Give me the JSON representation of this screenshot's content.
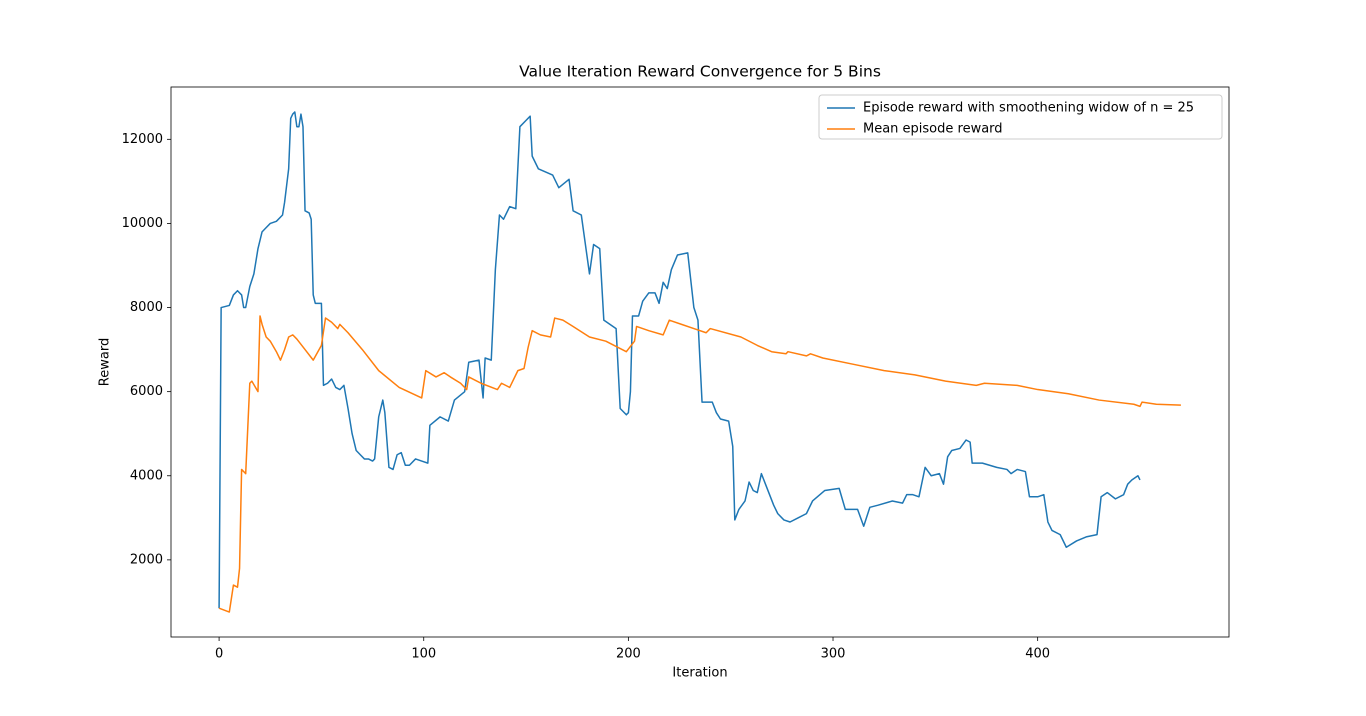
{
  "chart_data": {
    "type": "line",
    "title": "Value Iteration Reward Convergence for 5 Bins",
    "x_label": "Iteration",
    "y_label": "Reward",
    "xlim": [
      -23.5,
      493.5
    ],
    "ylim": [
      166,
      13244
    ],
    "xticks": [
      0,
      100,
      200,
      300,
      400
    ],
    "yticks": [
      2000,
      4000,
      6000,
      8000,
      10000,
      12000
    ],
    "legend": "upper right",
    "series": [
      {
        "name": "Episode reward with smoothening widow of n = 25",
        "color": "#1f77b4",
        "x": [
          0,
          1,
          5,
          7,
          9,
          11,
          12,
          13,
          15,
          17,
          19,
          21,
          23,
          25,
          28,
          31,
          32,
          33,
          34,
          35,
          36,
          37,
          38,
          39,
          40,
          41,
          42,
          44,
          45,
          46,
          47,
          50,
          51,
          53,
          55,
          57,
          59,
          61,
          63,
          65,
          67,
          69,
          71,
          73,
          75,
          76,
          78,
          80,
          81,
          83,
          85,
          87,
          89,
          91,
          93,
          96,
          99,
          102,
          103,
          108,
          112,
          115,
          120,
          122,
          127,
          129,
          130,
          133,
          135,
          137,
          139,
          142,
          145,
          147,
          150,
          152,
          153,
          156,
          163,
          166,
          171,
          173,
          177,
          181,
          183,
          186,
          188,
          191,
          194,
          196,
          199,
          200,
          201,
          202,
          205,
          207,
          210,
          213,
          215,
          217,
          219,
          221,
          224,
          229,
          232,
          234,
          236,
          241,
          243,
          245,
          249,
          251,
          252,
          254,
          257,
          259,
          261,
          263,
          265,
          267,
          269,
          271,
          273,
          276,
          279,
          283,
          287,
          290,
          296,
          303,
          306,
          312,
          315,
          318,
          322,
          329,
          334,
          336,
          339,
          342,
          345,
          348,
          352,
          354,
          356,
          358,
          362,
          365,
          367,
          368,
          373,
          380,
          385,
          387,
          390,
          394,
          396,
          400,
          403,
          405,
          407,
          411,
          414,
          419,
          424,
          429,
          431,
          434,
          438,
          442,
          444,
          446,
          449,
          450
        ],
        "values": [
          850,
          8000,
          8050,
          8300,
          8400,
          8300,
          8000,
          8000,
          8500,
          8800,
          9400,
          9800,
          9900,
          10000,
          10050,
          10200,
          10500,
          10900,
          11300,
          12500,
          12600,
          12650,
          12300,
          12300,
          12600,
          12300,
          10300,
          10250,
          10100,
          8300,
          8100,
          8100,
          6150,
          6200,
          6300,
          6100,
          6050,
          6150,
          5600,
          5000,
          4600,
          4500,
          4400,
          4400,
          4350,
          4400,
          5400,
          5800,
          5500,
          4200,
          4150,
          4500,
          4550,
          4250,
          4250,
          4400,
          4350,
          4300,
          5200,
          5400,
          5300,
          5800,
          6000,
          6700,
          6750,
          5850,
          6800,
          6750,
          8900,
          10200,
          10100,
          10400,
          10350,
          12300,
          12450,
          12550,
          11600,
          11300,
          11150,
          10850,
          11050,
          10300,
          10200,
          8800,
          9500,
          9400,
          7700,
          7600,
          7500,
          5600,
          5450,
          5500,
          6000,
          7800,
          7800,
          8150,
          8350,
          8350,
          8100,
          8600,
          8450,
          8900,
          9250,
          9300,
          8000,
          7700,
          5750,
          5750,
          5500,
          5350,
          5300,
          4700,
          2950,
          3200,
          3400,
          3850,
          3650,
          3600,
          4050,
          3800,
          3550,
          3300,
          3100,
          2950,
          2900,
          3000,
          3100,
          3400,
          3650,
          3700,
          3200,
          3200,
          2800,
          3250,
          3300,
          3400,
          3350,
          3550,
          3550,
          3500,
          4200,
          4000,
          4050,
          3800,
          4450,
          4600,
          4650,
          4850,
          4800,
          4300,
          4300,
          4200,
          4150,
          4050,
          4150,
          4100,
          3500,
          3500,
          3550,
          2900,
          2700,
          2600,
          2300,
          2450,
          2550,
          2600,
          3500,
          3600,
          3450,
          3550,
          3800,
          3900,
          4000,
          3900
        ]
      },
      {
        "name": "Mean episode reward",
        "color": "#ff7f0e",
        "x": [
          0,
          5,
          7,
          9,
          10,
          11,
          13,
          15,
          16,
          19,
          20,
          21,
          23,
          25,
          28,
          30,
          32,
          34,
          36,
          38,
          42,
          46,
          50,
          52,
          55,
          58,
          59,
          63,
          70,
          78,
          88,
          99,
          101,
          106,
          110,
          113,
          118,
          121,
          122,
          128,
          136,
          138,
          142,
          146,
          149,
          151,
          153,
          157,
          162,
          164,
          168,
          173,
          181,
          189,
          199,
          203,
          204,
          210,
          217,
          220,
          226,
          232,
          238,
          240,
          255,
          263,
          270,
          277,
          278,
          287,
          289,
          295,
          310,
          325,
          340,
          355,
          370,
          374,
          390,
          400,
          415,
          430,
          447,
          450,
          451,
          458,
          470
        ],
        "values": [
          850,
          760,
          1400,
          1350,
          1800,
          4150,
          4050,
          6200,
          6250,
          6000,
          7800,
          7600,
          7300,
          7200,
          6950,
          6750,
          7000,
          7300,
          7350,
          7250,
          7000,
          6750,
          7100,
          7750,
          7650,
          7500,
          7600,
          7400,
          7000,
          6500,
          6100,
          5850,
          6500,
          6350,
          6450,
          6350,
          6200,
          6050,
          6350,
          6200,
          6050,
          6200,
          6100,
          6500,
          6550,
          7050,
          7450,
          7350,
          7300,
          7750,
          7700,
          7550,
          7300,
          7200,
          6950,
          7200,
          7550,
          7450,
          7350,
          7700,
          7600,
          7500,
          7400,
          7500,
          7300,
          7100,
          6950,
          6900,
          6950,
          6850,
          6900,
          6800,
          6650,
          6500,
          6400,
          6250,
          6150,
          6200,
          6150,
          6050,
          5950,
          5800,
          5700,
          5650,
          5750,
          5700,
          5680
        ]
      }
    ]
  }
}
